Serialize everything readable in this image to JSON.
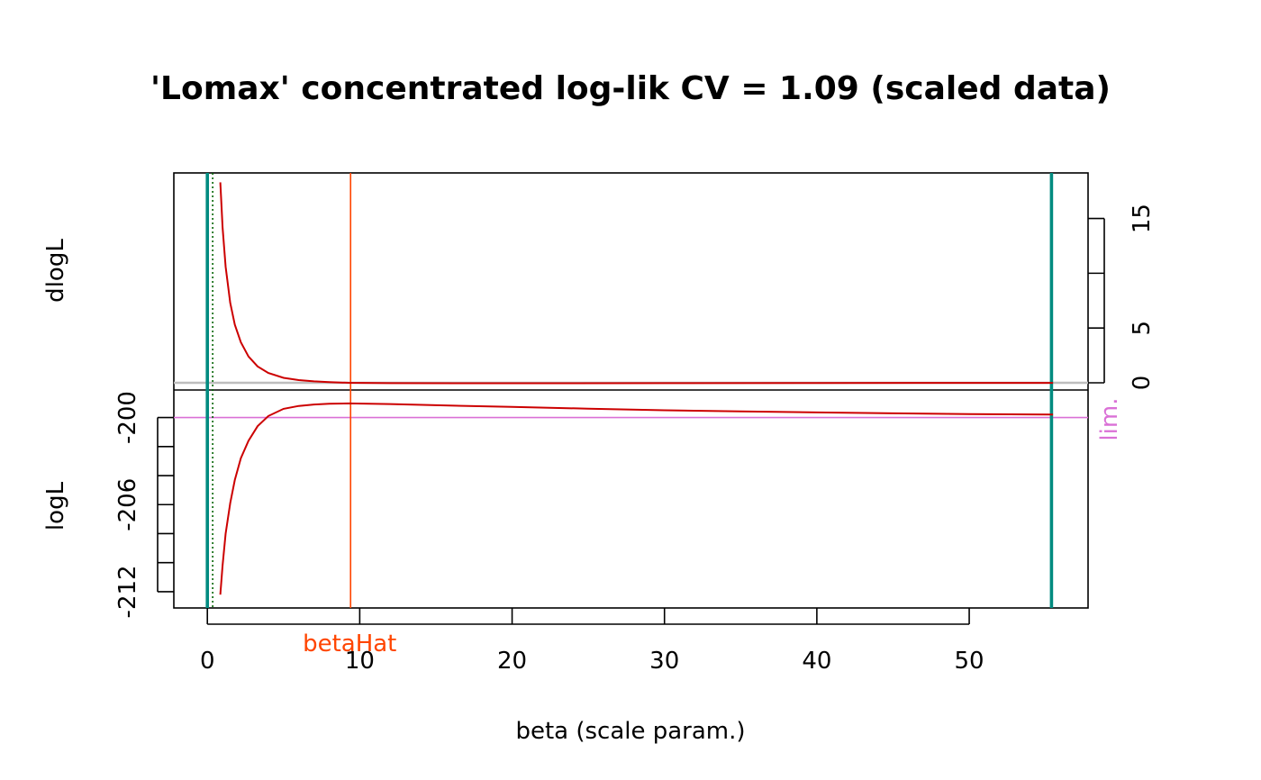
{
  "chart_data": {
    "type": "line",
    "title": "'Lomax' concentrated log-lik CV = 1.09 (scaled data)",
    "xlabel": "beta (scale param.)",
    "xlim": [
      -2.2,
      57.8
    ],
    "x_ticks": [
      0,
      10,
      20,
      30,
      40,
      50
    ],
    "colors": {
      "curve": "#cc0000",
      "limit_lines": "#008b80",
      "betahat": "#ff4500",
      "lim_line": "#da70d6",
      "zero_line": "#bebebe",
      "dotted": "#006400"
    },
    "panels": [
      {
        "name": "dlogL",
        "ylabel": "dlogL",
        "y_ticks": [
          0,
          5,
          10,
          15
        ],
        "y_tick_labels": [
          "0",
          "5",
          "",
          "15"
        ],
        "y_axis_side": "right",
        "ylim": [
          0,
          18.5
        ],
        "hline": {
          "y": 0,
          "label": ""
        },
        "series": [
          {
            "x": [
              0.85,
              1.0,
              1.2,
              1.5,
              1.8,
              2.2,
              2.7,
              3.3,
              4.0,
              5.0,
              6.0,
              7.0,
              8.0,
              9.3,
              12.0,
              20.0,
              30.0,
              40.0,
              55.5
            ],
            "values": [
              18.3,
              14.2,
              10.6,
              7.3,
              5.3,
              3.7,
              2.4,
              1.5,
              0.9,
              0.45,
              0.25,
              0.13,
              0.06,
              0.0,
              -0.03,
              -0.04,
              -0.03,
              -0.02,
              -0.01
            ]
          }
        ]
      },
      {
        "name": "logL",
        "ylabel": "logL",
        "y_ticks": [
          -212,
          -210,
          -208,
          -206,
          -204,
          -202,
          -200
        ],
        "y_tick_labels": [
          "-212",
          "",
          "",
          "-206",
          "",
          "",
          "-200"
        ],
        "y_axis_side": "left",
        "ylim": [
          -212.5,
          -198.6
        ],
        "hline": {
          "y": -200.0,
          "label": "lim."
        },
        "series": [
          {
            "x": [
              0.85,
              1.0,
              1.2,
              1.5,
              1.8,
              2.2,
              2.7,
              3.3,
              4.0,
              5.0,
              6.0,
              7.0,
              8.0,
              9.3,
              12.0,
              15.0,
              20.0,
              25.0,
              30.0,
              35.0,
              40.0,
              45.0,
              50.0,
              55.5
            ],
            "values": [
              -212.2,
              -210.2,
              -208.0,
              -205.9,
              -204.3,
              -202.8,
              -201.6,
              -200.6,
              -199.9,
              -199.4,
              -199.2,
              -199.1,
              -199.05,
              -199.03,
              -199.07,
              -199.15,
              -199.27,
              -199.39,
              -199.5,
              -199.58,
              -199.65,
              -199.71,
              -199.76,
              -199.8
            ]
          }
        ]
      }
    ],
    "vlines": [
      {
        "x": 0.0,
        "style": "solid",
        "color_key": "limit_lines"
      },
      {
        "x": 55.4,
        "style": "solid",
        "color_key": "limit_lines"
      },
      {
        "x": 0.35,
        "style": "dotted",
        "color_key": "dotted"
      },
      {
        "x": 9.4,
        "style": "solid",
        "color_key": "betahat",
        "label": "betaHat"
      }
    ]
  }
}
